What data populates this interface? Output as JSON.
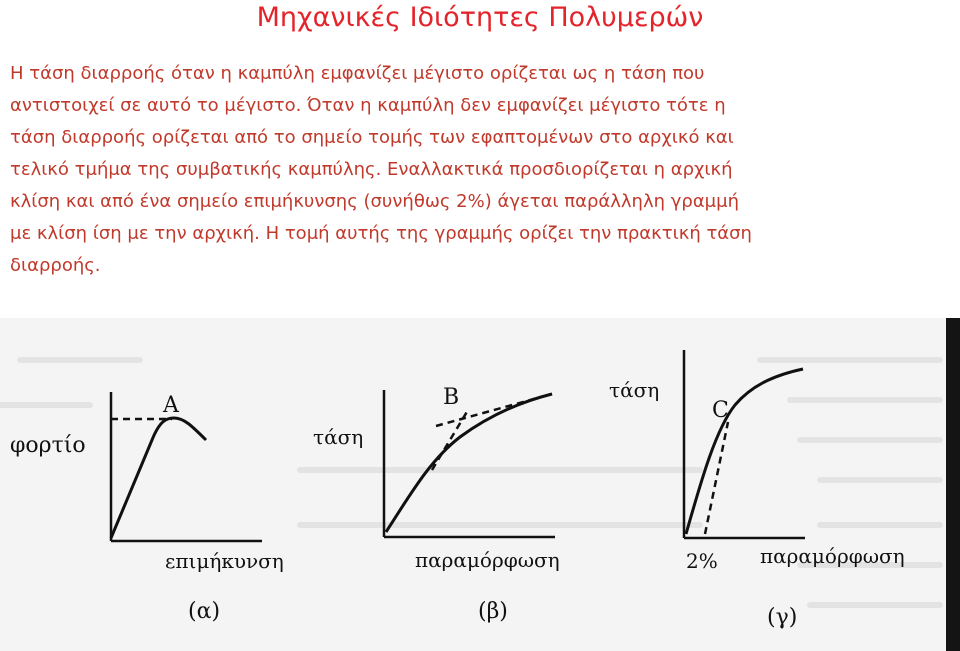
{
  "title": "Μηχανικές Ιδιότητες Πολυμερών",
  "paragraph_lines": [
    "Η τάση διαρροής όταν η καμπύλη εμφανίζει μέγιστο ορίζεται ως η τάση που",
    "αντιστοιχεί σε αυτό το μέγιστο.  Όταν η καμπύλη δεν εμφανίζει μέγιστο τότε η",
    "τάση διαρροής ορίζεται από το σημείο τομής των εφαπτομένων στο αρχικό και",
    "τελικό τμήμα της συμβατικής καμπύλης. Εναλλακτικά προσδιορίζεται η αρχική",
    "κλίση και από ένα σημείο επιμήκυνσης (συνήθως 2%) άγεται παράλληλη γραμμή",
    "με κλίση ίση με την αρχική. Η τομή αυτής της γραμμής ορίζει την πρακτική τάση",
    "διαρροής."
  ],
  "colors": {
    "title": "#e3242b",
    "text": "#c0392b",
    "ink": "#111111",
    "scan_background": "#f4f4f4"
  },
  "figure": {
    "panel_a": {
      "y_label": "φορτίο",
      "x_label": "επιμήκυνση",
      "point_label": "A",
      "caption": "(α)"
    },
    "panel_b": {
      "y_label": "τάση",
      "x_label": "παραμόρφωση",
      "point_label": "B",
      "caption": "(β)"
    },
    "panel_c": {
      "y_label": "τάση",
      "x_label": "παραμόρφωση",
      "point_label": "C",
      "offset_label": "2%",
      "caption": "(γ)"
    }
  }
}
